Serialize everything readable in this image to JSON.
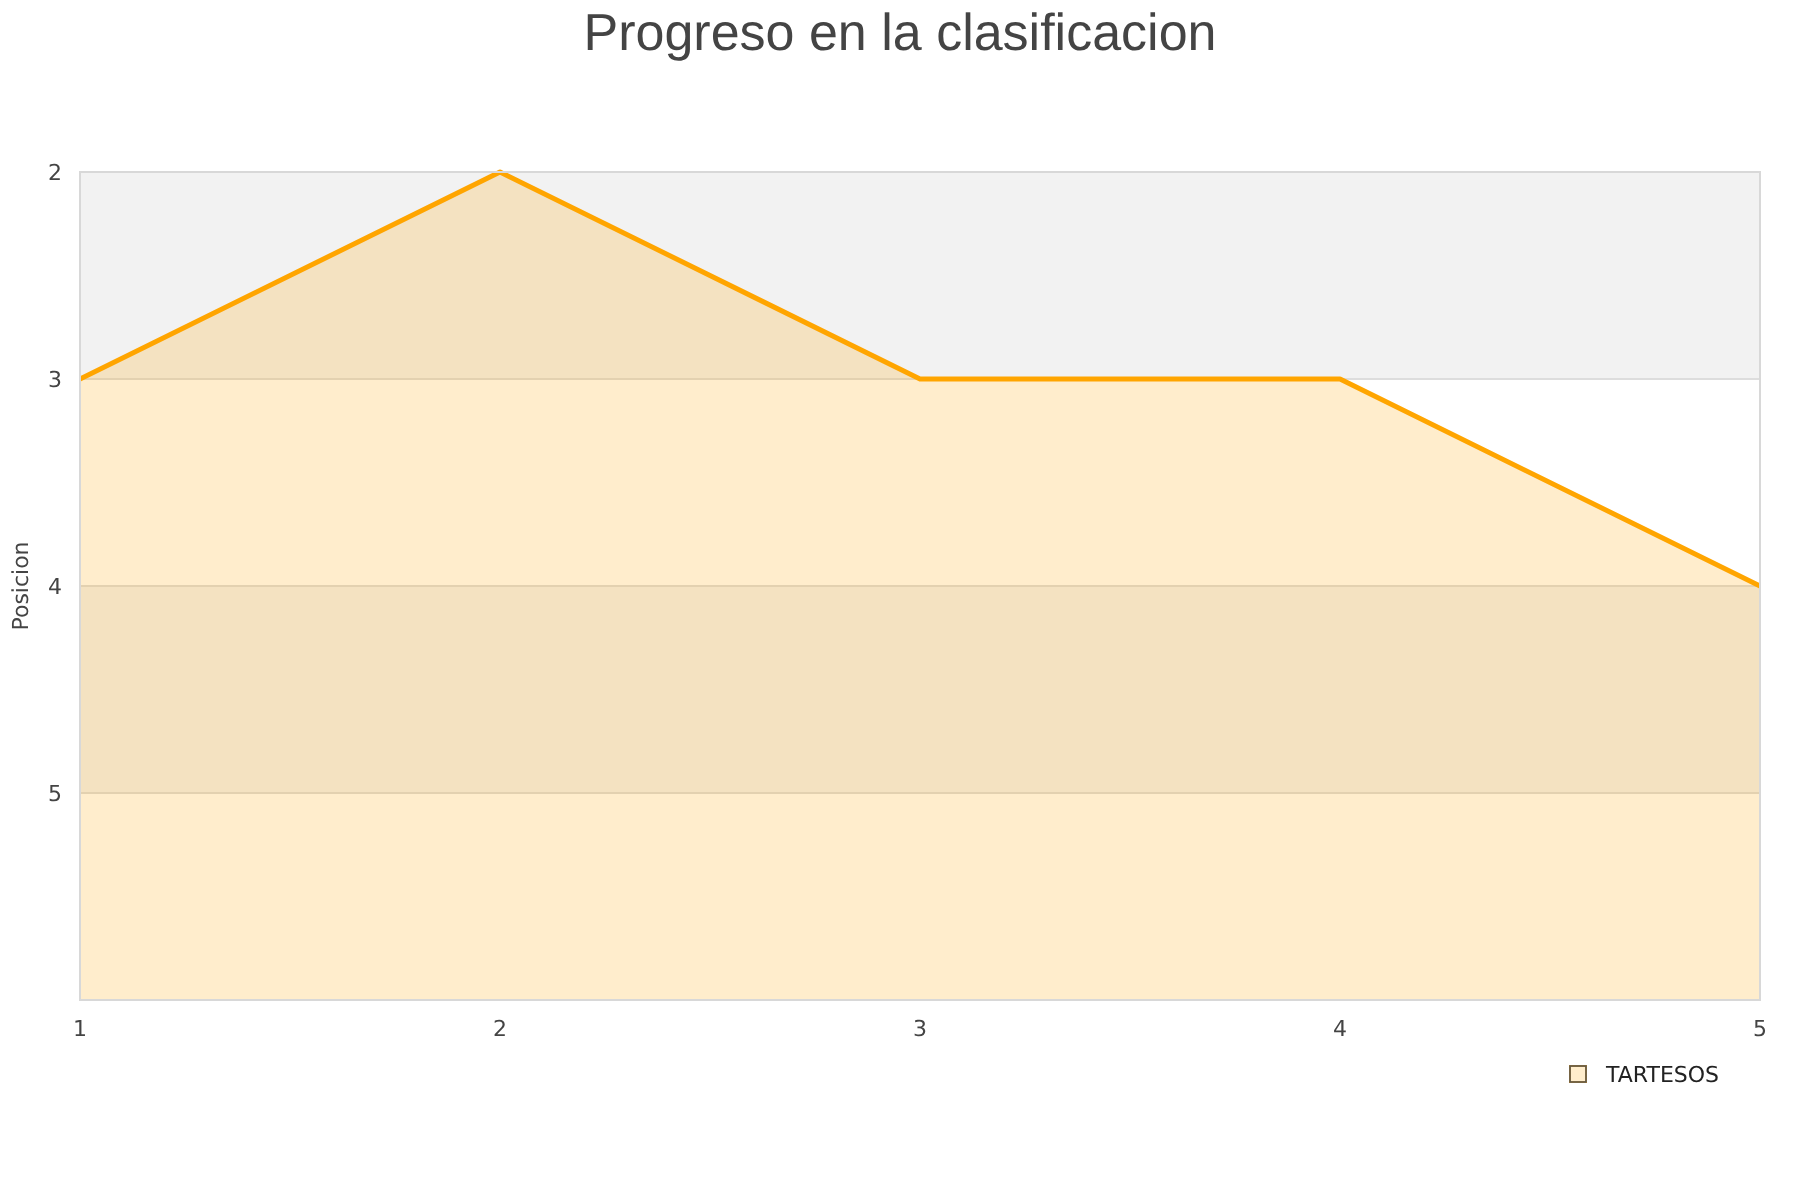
{
  "chart_data": {
    "type": "area",
    "title": "Progreso en la clasificacion",
    "ylabel": "Posicion",
    "x": [
      1,
      2,
      3,
      4,
      5
    ],
    "xlim": [
      1,
      5
    ],
    "xticks": [
      1,
      2,
      3,
      4,
      5
    ],
    "ylim": [
      6,
      2
    ],
    "yticks": [
      2,
      3,
      4,
      5
    ],
    "series": [
      {
        "name": "TARTESOS",
        "color": "#ffa500",
        "values": [
          3,
          2,
          3,
          3,
          4
        ]
      }
    ],
    "bands": [
      {
        "axis": "y",
        "from": 2,
        "to": 3,
        "color": "#f2f2f2"
      },
      {
        "axis": "y",
        "from": 4,
        "to": 5,
        "color": "#f2f2f2"
      }
    ],
    "grid": "y",
    "legend": "bottom right",
    "marker": "none",
    "line_style": "solid"
  }
}
